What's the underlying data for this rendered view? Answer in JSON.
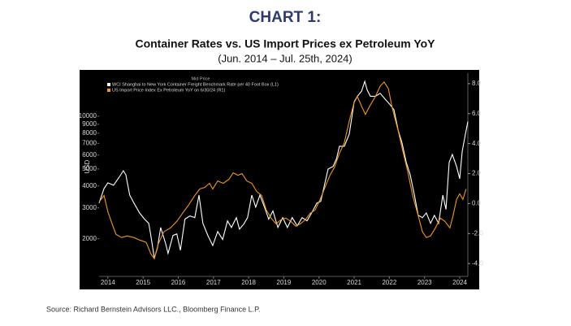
{
  "chart_data": {
    "type": "line",
    "title": "CHART 1:",
    "subtitle": "Container Rates vs. US Import Prices ex Petroleum YoY",
    "date_range": "(Jun. 2014 – Jul. 25th, 2024)",
    "legend_title": "Mid Price",
    "legend": "upper left",
    "y_label": "USD",
    "source": "Source: Richard Bernstein Advisors LLC., Bloomberg Finance L.P.",
    "ylog": true,
    "grid": false,
    "xlim": [
      2014.25,
      2024.73
    ],
    "xticks": [
      {
        "value": 2014.5,
        "label": "2014"
      },
      {
        "value": 2015.5,
        "label": "2015"
      },
      {
        "value": 2016.5,
        "label": "2016"
      },
      {
        "value": 2017.5,
        "label": "2017"
      },
      {
        "value": 2018.5,
        "label": "2018"
      },
      {
        "value": 2019.5,
        "label": "2019"
      },
      {
        "value": 2020.5,
        "label": "2020"
      },
      {
        "value": 2021.5,
        "label": "2021"
      },
      {
        "value": 2022.5,
        "label": "2022"
      },
      {
        "value": 2023.5,
        "label": "2023"
      },
      {
        "value": 2024.5,
        "label": "2024"
      }
    ],
    "ylim": [
      1220,
      17600
    ],
    "yticks": [
      2000,
      3000,
      4000,
      5000,
      6000,
      7000,
      8000,
      9000,
      10000
    ],
    "y2lim": [
      -4.86,
      8.7
    ],
    "y2ticks": [
      {
        "value": -4,
        "label": "-4.0"
      },
      {
        "value": -2,
        "label": "-2.0"
      },
      {
        "value": 0,
        "label": "0.0"
      },
      {
        "value": 2,
        "label": "2.0"
      },
      {
        "value": 4,
        "label": "4.0"
      },
      {
        "value": 6,
        "label": "6.0"
      },
      {
        "value": 8,
        "label": "8.0"
      }
    ],
    "series": [
      {
        "name": "WCI Shanghai to New York Container Freight Benchmark Rate per 40 Foot Box (L1)",
        "color": "#ffffff",
        "axis": "y",
        "x": [
          2014.25,
          2014.39,
          2014.5,
          2014.66,
          2014.82,
          2014.94,
          2015.01,
          2015.12,
          2015.24,
          2015.4,
          2015.54,
          2015.66,
          2015.72,
          2015.82,
          2015.91,
          2016.0,
          2016.14,
          2016.21,
          2016.35,
          2016.46,
          2016.56,
          2016.69,
          2016.83,
          2016.97,
          2017.09,
          2017.2,
          2017.34,
          2017.48,
          2017.62,
          2017.76,
          2017.9,
          2018.01,
          2018.15,
          2018.24,
          2018.36,
          2018.47,
          2018.59,
          2018.7,
          2018.82,
          2018.96,
          2019.07,
          2019.19,
          2019.33,
          2019.47,
          2019.6,
          2019.74,
          2019.88,
          2020.02,
          2020.16,
          2020.32,
          2020.44,
          2020.55,
          2020.67,
          2020.76,
          2020.9,
          2021.0,
          2021.08,
          2021.22,
          2021.36,
          2021.5,
          2021.59,
          2021.71,
          2021.8,
          2021.87,
          2021.96,
          2022.1,
          2022.24,
          2022.38,
          2022.51,
          2022.63,
          2022.75,
          2022.86,
          2022.98,
          2023.09,
          2023.21,
          2023.32,
          2023.44,
          2023.55,
          2023.67,
          2023.78,
          2023.9,
          2024.02,
          2024.11,
          2024.2,
          2024.29,
          2024.41,
          2024.5,
          2024.57,
          2024.66,
          2024.73
        ],
        "values": [
          3195,
          3870,
          4170,
          4040,
          4490,
          4890,
          4640,
          3550,
          3200,
          2810,
          2590,
          2450,
          2090,
          1550,
          1780,
          2320,
          1880,
          1650,
          2090,
          2130,
          1720,
          2590,
          2700,
          2640,
          3550,
          2450,
          2090,
          1830,
          2200,
          1980,
          2530,
          2320,
          2640,
          2270,
          2420,
          2640,
          3550,
          3030,
          3550,
          3000,
          2590,
          2880,
          2320,
          2640,
          2320,
          2640,
          2370,
          2640,
          2530,
          2880,
          3200,
          3270,
          4170,
          5000,
          5170,
          5740,
          6740,
          6740,
          7900,
          12110,
          13000,
          13900,
          15800,
          14100,
          13000,
          13000,
          13500,
          12500,
          11700,
          10900,
          8330,
          7030,
          5450,
          4640,
          3550,
          2720,
          2640,
          2810,
          2450,
          2720,
          2450,
          3550,
          2940,
          5450,
          6060,
          5170,
          4400,
          6330,
          7900,
          9320
        ]
      },
      {
        "name": "US Import Price Index Ex Petroleum YoY on 6/30/24 (R1)",
        "color": "#f0961e",
        "axis": "y2",
        "x": [
          2014.25,
          2014.39,
          2014.5,
          2014.62,
          2014.73,
          2014.89,
          2015.05,
          2015.24,
          2015.4,
          2015.59,
          2015.72,
          2015.82,
          2015.93,
          2016.09,
          2016.28,
          2016.46,
          2016.62,
          2016.79,
          2016.97,
          2017.11,
          2017.25,
          2017.39,
          2017.48,
          2017.62,
          2017.78,
          2017.94,
          2018.06,
          2018.2,
          2018.31,
          2018.45,
          2018.59,
          2018.73,
          2018.87,
          2019.0,
          2019.14,
          2019.28,
          2019.42,
          2019.56,
          2019.7,
          2019.84,
          2019.97,
          2020.11,
          2020.25,
          2020.39,
          2020.53,
          2020.67,
          2020.81,
          2020.94,
          2021.08,
          2021.22,
          2021.36,
          2021.5,
          2021.59,
          2021.71,
          2021.82,
          2021.94,
          2022.1,
          2022.24,
          2022.35,
          2022.47,
          2022.58,
          2022.75,
          2022.88,
          2023.02,
          2023.16,
          2023.3,
          2023.44,
          2023.55,
          2023.67,
          2023.81,
          2023.95,
          2024.08,
          2024.22,
          2024.31,
          2024.41,
          2024.5,
          2024.59,
          2024.68
        ],
        "values": [
          0.1,
          0.54,
          -0.54,
          -1.35,
          -2.05,
          -2.27,
          -2.16,
          -2.27,
          -2.43,
          -2.59,
          -3.35,
          -3.68,
          -2.7,
          -1.89,
          -1.62,
          -1.19,
          -0.65,
          -0.11,
          0.54,
          0.97,
          1.08,
          1.35,
          0.97,
          1.51,
          1.35,
          1.62,
          2.05,
          1.89,
          2.0,
          1.51,
          1.35,
          0.81,
          0.54,
          -0.43,
          -0.97,
          -1.35,
          -1.08,
          -0.97,
          -1.19,
          -1.51,
          -1.35,
          -1.08,
          -0.65,
          -0.43,
          0.27,
          1.08,
          1.89,
          2.43,
          3.35,
          4.05,
          5.51,
          6.76,
          7.14,
          6.49,
          5.95,
          6.49,
          7.14,
          7.84,
          8.11,
          7.68,
          6.38,
          4.86,
          3.51,
          2.16,
          0.54,
          -0.65,
          -1.89,
          -2.27,
          -2.16,
          -1.62,
          -0.97,
          -1.19,
          -1.62,
          -0.81,
          0.27,
          0.65,
          0.27,
          0.97
        ]
      }
    ]
  }
}
